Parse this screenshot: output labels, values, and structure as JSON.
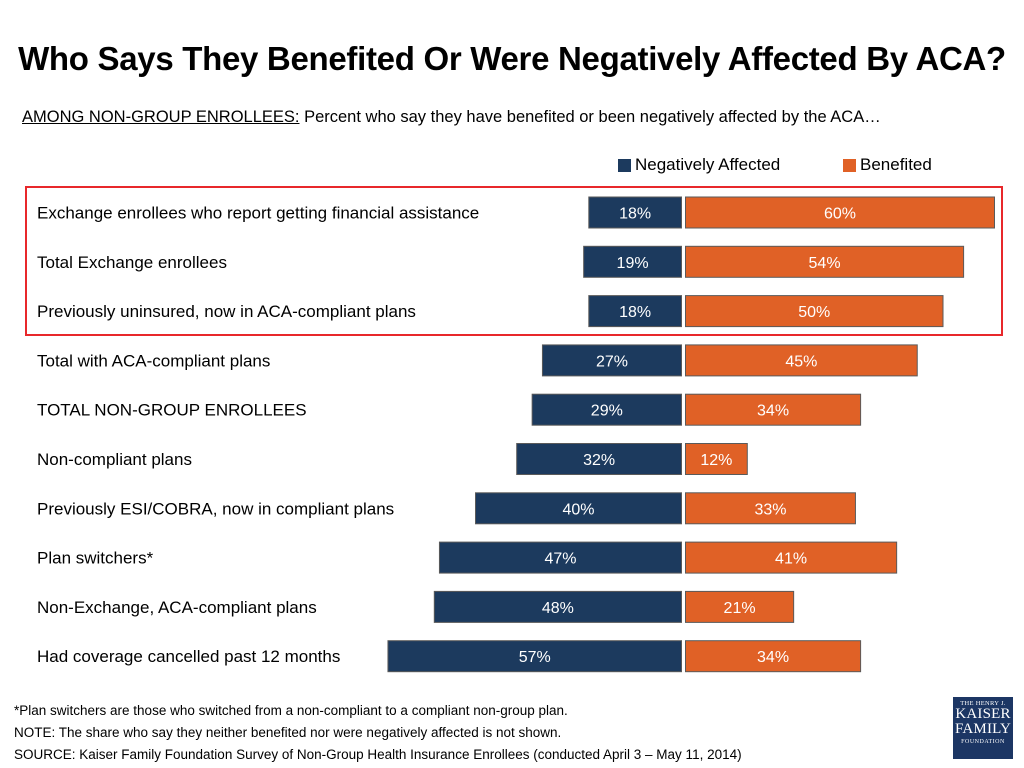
{
  "chart_data": {
    "type": "bar",
    "orientation": "horizontal-diverging",
    "title": "Who Says They Benefited Or Were Negatively Affected By ACA?",
    "subtitle_lead": "AMONG NON-GROUP ENROLLEES:",
    "subtitle_rest": " Percent who say they have benefited or been negatively affected by the ACA…",
    "categories": [
      "Exchange enrollees who report getting financial  assistance",
      "Total Exchange enrollees",
      "Previously uninsured, now in ACA-compliant plans",
      "Total with ACA-compliant plans",
      "TOTAL NON-GROUP ENROLLEES",
      "Non-compliant plans",
      "Previously ESI/COBRA, now in compliant  plans",
      "Plan switchers*",
      "Non-Exchange, ACA-compliant plans",
      "Had coverage cancelled past 12 months"
    ],
    "series": [
      {
        "name": "Negatively Affected",
        "color": "#1c3a5e",
        "values": [
          18,
          19,
          18,
          27,
          29,
          32,
          40,
          47,
          48,
          57
        ]
      },
      {
        "name": "Benefited",
        "color": "#e06126",
        "values": [
          60,
          54,
          50,
          45,
          34,
          12,
          33,
          41,
          21,
          34
        ]
      }
    ],
    "value_suffix": "%",
    "legend_position": "top-right",
    "highlighted_rows": 3
  },
  "footnotes": [
    "*Plan switchers are those who switched from a non-compliant to a compliant non-group plan.",
    "NOTE: The share who say they neither benefited nor were negatively affected is not shown.",
    "SOURCE: Kaiser Family Foundation Survey of Non-Group Health Insurance Enrollees  (conducted April 3 – May 11, 2014)"
  ],
  "logo": {
    "line1": "THE HENRY J.",
    "line2": "KAISER",
    "line3": "FAMILY",
    "line4": "FOUNDATION"
  }
}
